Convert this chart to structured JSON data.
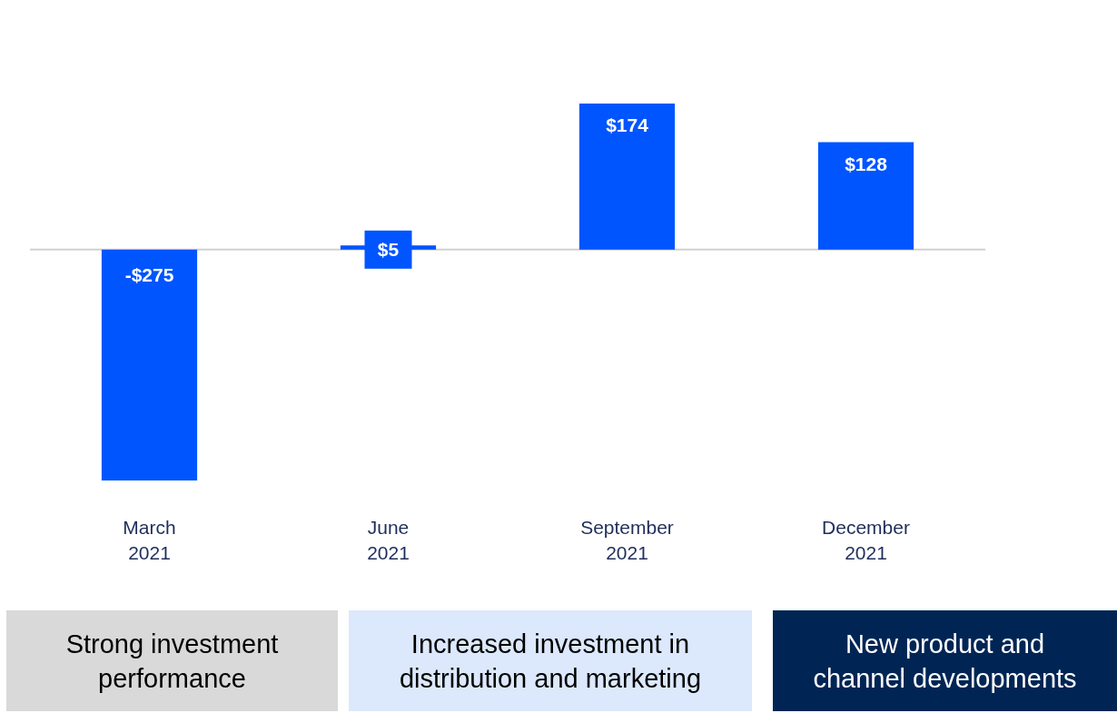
{
  "chart_data": {
    "type": "bar",
    "categories": [
      "March\n2021",
      "June\n2021",
      "September\n2021",
      "December\n2021"
    ],
    "values": [
      -275,
      5,
      174,
      128
    ],
    "color": "#0055ff",
    "value_labels": [
      "-$275",
      "$5",
      "$174",
      "$128"
    ],
    "annotations": [
      "Strong investment\nperformance",
      "Increased investment in\ndistribution and marketing",
      "New product and\nchannel developments"
    ]
  }
}
